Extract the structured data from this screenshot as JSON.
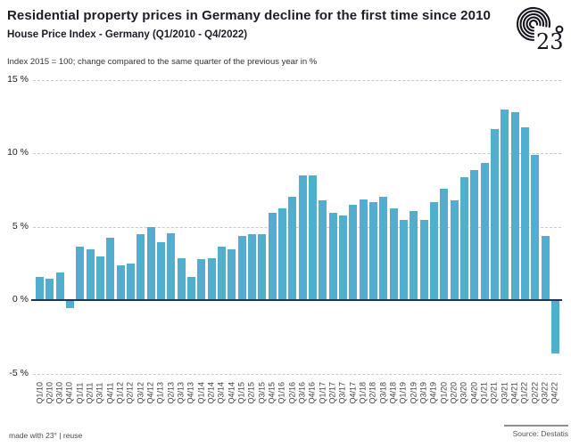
{
  "chart_data": {
    "type": "bar",
    "title": "Residential property prices in Germany decline for the first time since 2010",
    "subtitle": "House Price Index - Germany (Q1/2010 - Q4/2022)",
    "note": "Index 2015 = 100; change compared to the same quarter of the previous year in %",
    "categories": [
      "Q1/10",
      "Q2/10",
      "Q3/10",
      "Q4/10",
      "Q1/11",
      "Q2/11",
      "Q3/11",
      "Q4/11",
      "Q1/12",
      "Q2/12",
      "Q3/12",
      "Q4/12",
      "Q1/13",
      "Q2/13",
      "Q3/13",
      "Q4/13",
      "Q1/14",
      "Q2/14",
      "Q3/14",
      "Q4/14",
      "Q1/15",
      "Q2/15",
      "Q3/15",
      "Q4/15",
      "Q1/16",
      "Q2/16",
      "Q3/16",
      "Q4/16",
      "Q1/17",
      "Q2/17",
      "Q3/17",
      "Q4/17",
      "Q1/18",
      "Q2/18",
      "Q3/18",
      "Q4/18",
      "Q1/19",
      "Q2/19",
      "Q3/19",
      "Q4/19",
      "Q1/20",
      "Q2/20",
      "Q3/20",
      "Q4/20",
      "Q1/21",
      "Q2/21",
      "Q3/21",
      "Q4/21",
      "Q1/22",
      "Q2/22",
      "Q3/22",
      "Q4/22"
    ],
    "values": [
      1.5,
      1.4,
      1.8,
      -0.5,
      3.6,
      3.4,
      2.9,
      4.2,
      2.3,
      2.4,
      4.4,
      4.9,
      3.9,
      4.5,
      2.8,
      1.5,
      2.7,
      2.8,
      3.6,
      3.4,
      4.3,
      4.4,
      4.4,
      5.9,
      6.2,
      7.0,
      8.4,
      8.4,
      6.7,
      5.9,
      5.7,
      6.4,
      6.8,
      6.6,
      7.0,
      6.2,
      5.4,
      6.0,
      5.4,
      6.6,
      7.5,
      6.7,
      8.3,
      8.8,
      9.3,
      11.6,
      12.9,
      12.7,
      11.7,
      9.8,
      4.3,
      -3.6
    ],
    "xlabel": "",
    "ylabel": "change compared to the same quarter of the previous year in %",
    "ylim": [
      -5,
      15
    ],
    "y_ticks": [
      15,
      10,
      5,
      0,
      -5
    ],
    "y_tick_labels": [
      "15 %",
      "10 %",
      "5 %",
      "0 %",
      "-5 %"
    ],
    "grid": "horizontal dashed, zero axis solid",
    "legend": false,
    "bar_color": "#52aecf",
    "zero_line_color": "#1b3753",
    "source": "Source: Destatis"
  },
  "logo": {
    "text": "23",
    "degree": "°"
  },
  "footer": {
    "made_with": "made with 23°",
    "separator": " | ",
    "reuse_label": "reuse"
  }
}
